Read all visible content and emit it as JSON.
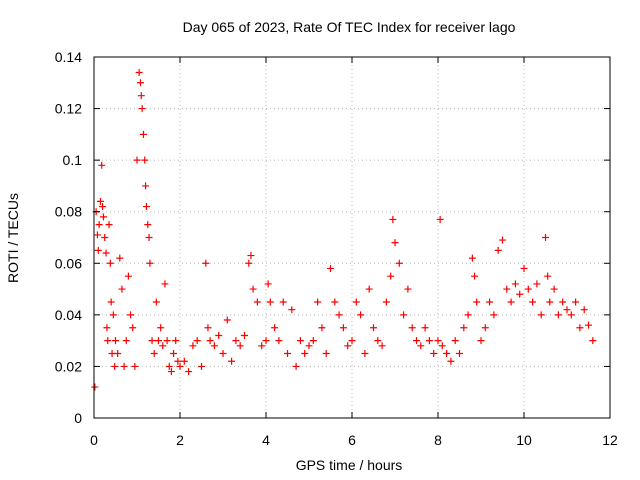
{
  "chart_data": {
    "type": "scatter",
    "title": "Day 065 of 2023, Rate Of TEC Index for receiver lago",
    "xlabel": "GPS time / hours",
    "ylabel": "ROTI / TECUs",
    "xlim": [
      0,
      12
    ],
    "ylim": [
      0,
      0.14
    ],
    "x_ticks": [
      "0",
      "2",
      "4",
      "6",
      "8",
      "10",
      "12"
    ],
    "y_ticks": [
      "0",
      "0.02",
      "0.04",
      "0.06",
      "0.08",
      "0.1",
      "0.12",
      "0.14"
    ],
    "grid": true,
    "marker": "+",
    "colors": {
      "points": "#ff0000",
      "grid": "#b8b8b8",
      "axes": "#000000"
    },
    "series": [
      {
        "x": [
          0.02,
          0.05,
          0.08,
          0.1,
          0.12,
          0.15,
          0.18,
          0.2,
          0.22,
          0.25,
          0.28,
          0.3,
          0.32,
          0.35,
          0.38,
          0.4,
          0.42,
          0.45,
          0.48,
          0.5,
          0.55,
          0.6,
          0.65,
          0.7,
          0.75,
          0.8,
          0.85,
          0.9,
          0.95,
          1.0,
          1.05,
          1.08,
          1.1,
          1.12,
          1.15,
          1.18,
          1.2,
          1.22,
          1.25,
          1.28,
          1.3,
          1.35,
          1.4,
          1.45,
          1.5,
          1.55,
          1.6,
          1.65,
          1.7,
          1.75,
          1.8,
          1.85,
          1.9,
          1.95,
          2.0,
          2.1,
          2.2,
          2.3,
          2.4,
          2.5,
          2.6,
          2.65,
          2.7,
          2.8,
          2.9,
          3.0,
          3.1,
          3.2,
          3.3,
          3.4,
          3.5,
          3.6,
          3.65,
          3.7,
          3.8,
          3.9,
          4.0,
          4.05,
          4.1,
          4.2,
          4.3,
          4.4,
          4.5,
          4.6,
          4.7,
          4.8,
          4.9,
          5.0,
          5.1,
          5.2,
          5.3,
          5.4,
          5.5,
          5.6,
          5.7,
          5.8,
          5.9,
          6.0,
          6.1,
          6.2,
          6.3,
          6.4,
          6.5,
          6.6,
          6.7,
          6.8,
          6.9,
          6.95,
          7.0,
          7.1,
          7.2,
          7.3,
          7.4,
          7.5,
          7.6,
          7.7,
          7.8,
          7.9,
          8.0,
          8.05,
          8.1,
          8.2,
          8.3,
          8.4,
          8.5,
          8.6,
          8.7,
          8.8,
          8.85,
          8.9,
          9.0,
          9.1,
          9.2,
          9.3,
          9.4,
          9.5,
          9.6,
          9.7,
          9.8,
          9.9,
          10.0,
          10.1,
          10.2,
          10.3,
          10.4,
          10.5,
          10.55,
          10.6,
          10.7,
          10.8,
          10.9,
          11.0,
          11.1,
          11.2,
          11.3,
          11.4,
          11.5,
          11.6
        ],
        "y": [
          0.012,
          0.08,
          0.071,
          0.065,
          0.075,
          0.084,
          0.098,
          0.082,
          0.078,
          0.07,
          0.064,
          0.035,
          0.03,
          0.075,
          0.06,
          0.045,
          0.025,
          0.04,
          0.02,
          0.03,
          0.025,
          0.062,
          0.05,
          0.02,
          0.03,
          0.055,
          0.04,
          0.035,
          0.02,
          0.1,
          0.134,
          0.13,
          0.125,
          0.12,
          0.11,
          0.1,
          0.09,
          0.082,
          0.075,
          0.07,
          0.06,
          0.03,
          0.025,
          0.045,
          0.03,
          0.035,
          0.028,
          0.052,
          0.03,
          0.02,
          0.018,
          0.025,
          0.03,
          0.022,
          0.02,
          0.022,
          0.018,
          0.028,
          0.03,
          0.02,
          0.06,
          0.035,
          0.03,
          0.028,
          0.032,
          0.025,
          0.038,
          0.022,
          0.03,
          0.028,
          0.032,
          0.06,
          0.063,
          0.05,
          0.045,
          0.028,
          0.03,
          0.052,
          0.045,
          0.035,
          0.03,
          0.045,
          0.025,
          0.042,
          0.02,
          0.03,
          0.025,
          0.028,
          0.03,
          0.045,
          0.035,
          0.025,
          0.058,
          0.045,
          0.04,
          0.035,
          0.028,
          0.03,
          0.045,
          0.04,
          0.025,
          0.05,
          0.035,
          0.03,
          0.028,
          0.045,
          0.055,
          0.077,
          0.068,
          0.06,
          0.04,
          0.05,
          0.035,
          0.03,
          0.028,
          0.035,
          0.03,
          0.025,
          0.03,
          0.077,
          0.028,
          0.025,
          0.022,
          0.03,
          0.025,
          0.035,
          0.04,
          0.062,
          0.055,
          0.045,
          0.03,
          0.035,
          0.045,
          0.04,
          0.065,
          0.069,
          0.05,
          0.045,
          0.052,
          0.048,
          0.058,
          0.05,
          0.045,
          0.052,
          0.04,
          0.07,
          0.055,
          0.045,
          0.05,
          0.04,
          0.045,
          0.042,
          0.04,
          0.045,
          0.035,
          0.042,
          0.036,
          0.03
        ]
      }
    ]
  }
}
